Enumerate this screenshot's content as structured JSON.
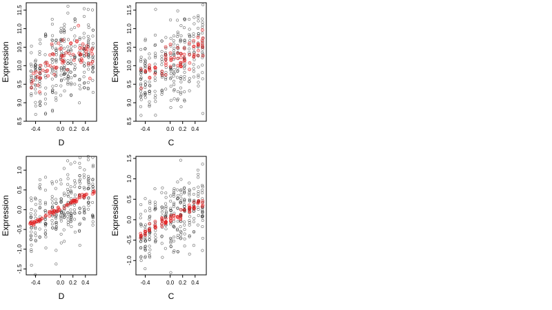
{
  "chart_data": [
    {
      "type": "scatter",
      "xlabel": "D",
      "ylabel": "Expression",
      "xlim": [
        -0.55,
        0.58
      ],
      "ylim": [
        8.5,
        11.7
      ],
      "xticks": [
        -0.4,
        0.0,
        0.2,
        0.4
      ],
      "xtick_labels": [
        "-0.4",
        "0.0",
        "0.2",
        "0.4"
      ],
      "yticks": [
        8.5,
        9.0,
        9.5,
        10.0,
        10.5,
        11.0,
        11.5
      ],
      "ytick_labels": [
        "8.5",
        "9.0",
        "9.5",
        "10.0",
        "10.5",
        "11.0",
        "11.5"
      ],
      "grid": false,
      "series": [
        {
          "color": "#000000",
          "marker": "open-circle",
          "seed": 11,
          "spread": 0.55,
          "mode": "level-clouds"
        },
        {
          "color": "#e41a1c",
          "marker": "open-circle",
          "seed": 12,
          "mode": "fitted-curve",
          "fit": [
            [
              -0.5,
              9.45
            ],
            [
              -0.3,
              9.8
            ],
            [
              -0.1,
              10.1
            ],
            [
              0.0,
              10.25
            ],
            [
              0.1,
              10.3
            ],
            [
              0.3,
              10.25
            ],
            [
              0.5,
              10.2
            ]
          ]
        }
      ]
    },
    {
      "type": "scatter",
      "xlabel": "C",
      "ylabel": "Expression",
      "xlim": [
        -0.55,
        0.58
      ],
      "ylim": [
        8.5,
        11.7
      ],
      "xticks": [
        -0.4,
        0.0,
        0.2,
        0.4
      ],
      "xtick_labels": [
        "-0.4",
        "0.0",
        "0.2",
        "0.4"
      ],
      "yticks": [
        8.5,
        9.0,
        9.5,
        10.0,
        10.5,
        11.0,
        11.5
      ],
      "ytick_labels": [
        "8.5",
        "9.0",
        "9.5",
        "10.0",
        "10.5",
        "11.0",
        "11.5"
      ],
      "grid": false,
      "series": [
        {
          "color": "#000000",
          "marker": "open-circle",
          "seed": 21,
          "spread": 0.55,
          "mode": "level-clouds"
        },
        {
          "color": "#e41a1c",
          "marker": "open-circle",
          "seed": 22,
          "mode": "fitted-columns",
          "fit": [
            [
              -0.5,
              9.65
            ],
            [
              -0.2,
              9.9
            ],
            [
              0.0,
              10.15
            ],
            [
              0.1,
              10.2
            ],
            [
              0.3,
              10.3
            ],
            [
              0.5,
              10.55
            ]
          ]
        }
      ]
    },
    {
      "type": "scatter",
      "xlabel": "D",
      "ylabel": "Expression",
      "xlim": [
        -0.55,
        0.58
      ],
      "ylim": [
        -1.65,
        1.35
      ],
      "xticks": [
        -0.4,
        0.0,
        0.2,
        0.4
      ],
      "xtick_labels": [
        "-0.4",
        "0.0",
        "0.2",
        "0.4"
      ],
      "yticks": [
        -1.5,
        -1.0,
        -0.5,
        0.0,
        0.5,
        1.0
      ],
      "ytick_labels": [
        "-1.5",
        "-1.0",
        "-0.5",
        "0.0",
        "0.5",
        "1.0"
      ],
      "grid": false,
      "series": [
        {
          "color": "#000000",
          "marker": "open-circle",
          "seed": 31,
          "spread": 0.45,
          "mode": "level-clouds"
        },
        {
          "color": "#e41a1c",
          "marker": "open-circle",
          "seed": 32,
          "mode": "fitted-line",
          "fit": [
            [
              -0.5,
              -0.38
            ],
            [
              0.5,
              0.45
            ]
          ]
        }
      ]
    },
    {
      "type": "scatter",
      "xlabel": "C",
      "ylabel": "Expression",
      "xlim": [
        -0.55,
        0.58
      ],
      "ylim": [
        -1.35,
        1.55
      ],
      "xticks": [
        -0.4,
        0.0,
        0.2,
        0.4
      ],
      "xtick_labels": [
        "-0.4",
        "0.0",
        "0.2",
        "0.4"
      ],
      "yticks": [
        -1.0,
        -0.5,
        0.0,
        0.5,
        1.0,
        1.5
      ],
      "ytick_labels": [
        "-1.0",
        "-0.5",
        "0.0",
        "0.5",
        "1.0",
        "1.5"
      ],
      "grid": false,
      "series": [
        {
          "color": "#000000",
          "marker": "open-circle",
          "seed": 41,
          "spread": 0.45,
          "mode": "level-clouds"
        },
        {
          "color": "#e41a1c",
          "marker": "open-circle",
          "seed": 42,
          "mode": "fitted-columns",
          "fit": [
            [
              -0.5,
              -0.42
            ],
            [
              -0.2,
              -0.15
            ],
            [
              0.0,
              0.0
            ],
            [
              0.1,
              0.08
            ],
            [
              0.3,
              0.25
            ],
            [
              0.5,
              0.42
            ]
          ]
        }
      ]
    }
  ]
}
